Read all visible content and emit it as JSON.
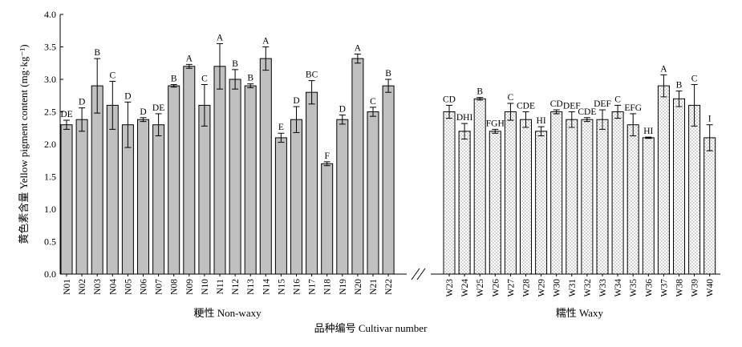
{
  "chart_data": {
    "type": "bar",
    "ylabel": "黄色素含量 Yellow pigment content (mg·kg⁻¹)",
    "xlabel": "品种编号 Cultivar number",
    "ylim": [
      0,
      4
    ],
    "yticks": [
      "0.0",
      "0.5",
      "1.0",
      "1.5",
      "2.0",
      "2.5",
      "3.0",
      "3.5",
      "4.0"
    ],
    "grid": false,
    "axis_break": true,
    "groups": [
      {
        "name": "粳性 Non-waxy",
        "pattern": "solid",
        "fill": "#c0c0c0",
        "bars": [
          {
            "category": "N01",
            "value": 2.3,
            "error": 0.07,
            "label": "DE"
          },
          {
            "category": "N02",
            "value": 2.38,
            "error": 0.18,
            "label": "D"
          },
          {
            "category": "N03",
            "value": 2.9,
            "error": 0.42,
            "label": "B"
          },
          {
            "category": "N04",
            "value": 2.6,
            "error": 0.37,
            "label": "C"
          },
          {
            "category": "N05",
            "value": 2.3,
            "error": 0.35,
            "label": "D"
          },
          {
            "category": "N06",
            "value": 2.38,
            "error": 0.03,
            "label": "D"
          },
          {
            "category": "N07",
            "value": 2.3,
            "error": 0.17,
            "label": "DE"
          },
          {
            "category": "N08",
            "value": 2.9,
            "error": 0.02,
            "label": "B"
          },
          {
            "category": "N09",
            "value": 3.2,
            "error": 0.03,
            "label": "A"
          },
          {
            "category": "N10",
            "value": 2.6,
            "error": 0.32,
            "label": "C"
          },
          {
            "category": "N11",
            "value": 3.2,
            "error": 0.35,
            "label": "A"
          },
          {
            "category": "N12",
            "value": 3.0,
            "error": 0.15,
            "label": "B"
          },
          {
            "category": "N13",
            "value": 2.9,
            "error": 0.03,
            "label": "B"
          },
          {
            "category": "N14",
            "value": 3.32,
            "error": 0.18,
            "label": "A"
          },
          {
            "category": "N15",
            "value": 2.1,
            "error": 0.07,
            "label": "E"
          },
          {
            "category": "N16",
            "value": 2.38,
            "error": 0.2,
            "label": "D"
          },
          {
            "category": "N17",
            "value": 2.8,
            "error": 0.18,
            "label": "BC"
          },
          {
            "category": "N18",
            "value": 1.7,
            "error": 0.03,
            "label": "F"
          },
          {
            "category": "N19",
            "value": 2.38,
            "error": 0.07,
            "label": "D"
          },
          {
            "category": "N20",
            "value": 3.32,
            "error": 0.07,
            "label": "A"
          },
          {
            "category": "N21",
            "value": 2.5,
            "error": 0.07,
            "label": "C"
          },
          {
            "category": "N22",
            "value": 2.9,
            "error": 0.1,
            "label": "B"
          }
        ]
      },
      {
        "name": "糯性 Waxy",
        "pattern": "dotted",
        "fill": "#ffffff",
        "bars": [
          {
            "category": "W23",
            "value": 2.5,
            "error": 0.1,
            "label": "CD"
          },
          {
            "category": "W24",
            "value": 2.2,
            "error": 0.12,
            "label": "DHI"
          },
          {
            "category": "W25",
            "value": 2.7,
            "error": 0.02,
            "label": "B"
          },
          {
            "category": "W26",
            "value": 2.2,
            "error": 0.03,
            "label": "FGH"
          },
          {
            "category": "W27",
            "value": 2.5,
            "error": 0.13,
            "label": "C"
          },
          {
            "category": "W28",
            "value": 2.38,
            "error": 0.12,
            "label": "CDE"
          },
          {
            "category": "W29",
            "value": 2.2,
            "error": 0.07,
            "label": "HI"
          },
          {
            "category": "W30",
            "value": 2.5,
            "error": 0.03,
            "label": "CD"
          },
          {
            "category": "W31",
            "value": 2.38,
            "error": 0.12,
            "label": "DEF"
          },
          {
            "category": "W32",
            "value": 2.38,
            "error": 0.03,
            "label": "CDE"
          },
          {
            "category": "W33",
            "value": 2.38,
            "error": 0.15,
            "label": "DEF"
          },
          {
            "category": "W34",
            "value": 2.5,
            "error": 0.1,
            "label": "C"
          },
          {
            "category": "W35",
            "value": 2.3,
            "error": 0.17,
            "label": "EFG"
          },
          {
            "category": "W36",
            "value": 2.1,
            "error": 0.01,
            "label": "HI"
          },
          {
            "category": "W37",
            "value": 2.9,
            "error": 0.17,
            "label": "A"
          },
          {
            "category": "W38",
            "value": 2.7,
            "error": 0.12,
            "label": "B"
          },
          {
            "category": "W39",
            "value": 2.6,
            "error": 0.32,
            "label": "C"
          },
          {
            "category": "W40",
            "value": 2.1,
            "error": 0.2,
            "label": "I"
          }
        ]
      }
    ]
  }
}
